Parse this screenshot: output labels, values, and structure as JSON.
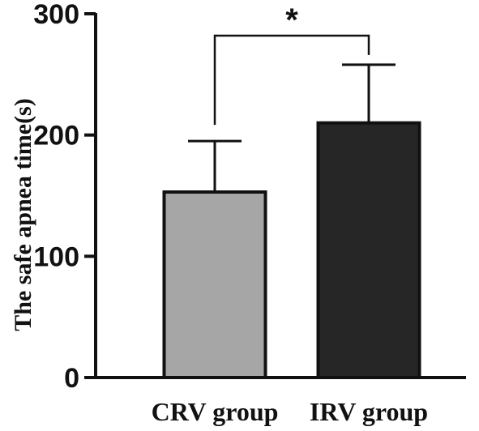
{
  "chart_data": {
    "type": "bar",
    "ylabel": "The safe apnea time(s)",
    "categories": [
      "CRV group",
      "IRV group"
    ],
    "series": [
      {
        "values": [
          153,
          210
        ],
        "errors": [
          42,
          48
        ]
      }
    ],
    "bar_colors": [
      "#a6a6a6",
      "#262626"
    ],
    "ylim": [
      0,
      300
    ],
    "yticks": [
      "0",
      "100",
      "200",
      "300"
    ],
    "grid": false,
    "significance": {
      "label": "*",
      "between": [
        "CRV group",
        "IRV group"
      ]
    }
  }
}
